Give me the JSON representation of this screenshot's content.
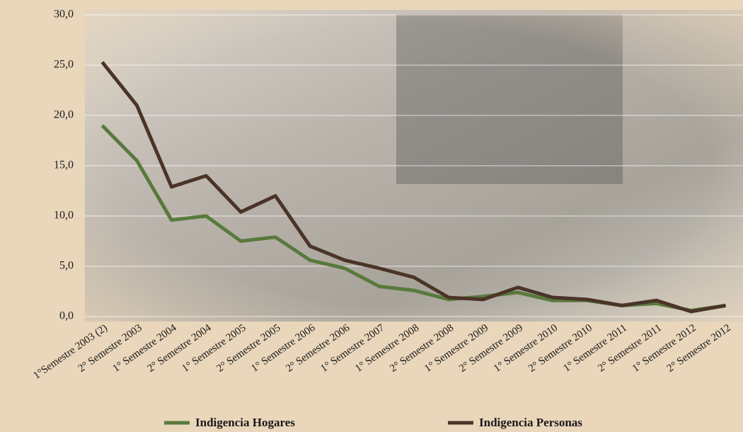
{
  "chart_data": {
    "type": "line",
    "categories": [
      "1°Semestre 2003 (2)",
      "2° Semestre 2003",
      "1° Semestre 2004",
      "2° Semestre 2004",
      "1° Semestre 2005",
      "2° Semestre 2005",
      "1° Semestre 2006",
      "2° Semestre 2006",
      "1° Semestre 2007",
      "1° Semestre 2008",
      "2° Semestre 2008",
      "1° Semestre 2009",
      "2° Semestre 2009",
      "1° Semestre 2010",
      "2° Semestre 2010",
      "1° Semestre 2011",
      "2° Semestre 2011",
      "1° Semestre 2012",
      "2° Semestre 2012"
    ],
    "series": [
      {
        "name": "Indigencia Hogares",
        "color": "#587a3c",
        "values": [
          19.0,
          15.5,
          9.6,
          10.0,
          7.5,
          7.9,
          5.6,
          4.8,
          3.0,
          2.6,
          1.7,
          2.0,
          2.4,
          1.6,
          1.6,
          1.1,
          1.3,
          0.6,
          1.1
        ]
      },
      {
        "name": "Indigencia Personas",
        "color": "#4a3427",
        "values": [
          25.3,
          21.0,
          12.9,
          14.0,
          10.4,
          12.0,
          7.0,
          5.6,
          4.8,
          3.9,
          1.9,
          1.7,
          2.9,
          1.9,
          1.7,
          1.1,
          1.6,
          0.5,
          1.1
        ]
      }
    ],
    "ylim": [
      0,
      30
    ],
    "yticks": [
      {
        "value": 0,
        "label": "0,0"
      },
      {
        "value": 5,
        "label": "5,0"
      },
      {
        "value": 10,
        "label": "10,0"
      },
      {
        "value": 15,
        "label": "15,0"
      },
      {
        "value": 20,
        "label": "20,0"
      },
      {
        "value": 25,
        "label": "25,0"
      },
      {
        "value": 30,
        "label": "30,0"
      }
    ],
    "grid": true
  }
}
